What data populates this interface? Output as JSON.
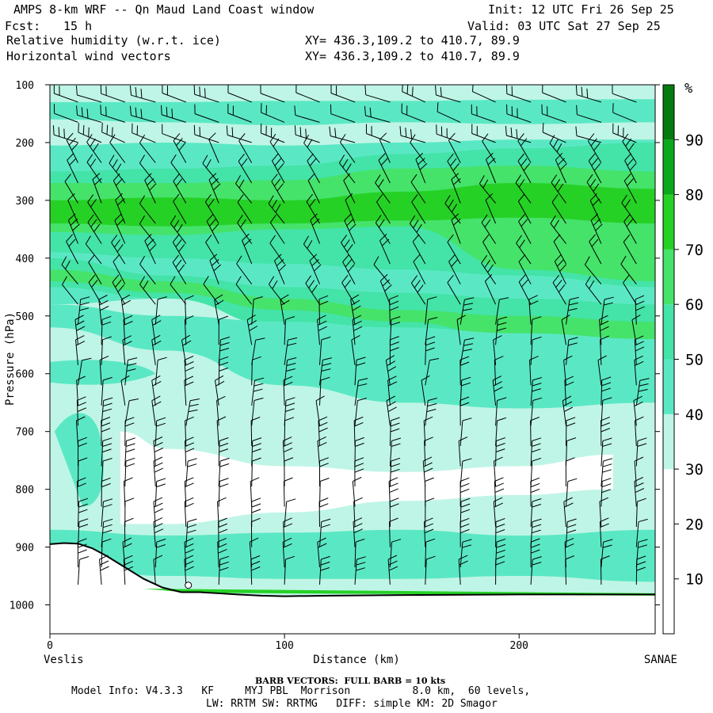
{
  "header": {
    "title": "AMPS 8-km WRF -- Qn Maud Land Coast window",
    "fcst_label": "Fcst:",
    "fcst_value": "15 h",
    "init": "Init: 12 UTC Fri 26 Sep 25",
    "valid": "Valid: 03 UTC Sat 27 Sep 25",
    "field1": "Relative humidity (w.r.t. ice)",
    "field2": "Horizontal wind vectors",
    "xy1": "XY= 436.3,109.2 to 410.7, 89.9",
    "xy2": "XY= 436.3,109.2 to 410.7, 89.9"
  },
  "footer": {
    "barb_note": "BARB VECTORS:  FULL BARB = 10 kts",
    "model_info": "Model Info: V4.3.3   KF     MYJ PBL  Morrison          8.0 km,  60 levels,",
    "physics": "LW: RRTM SW: RRTMG   DIFF: simple KM: 2D Smagor"
  },
  "colors": {
    "rh_30_40": "#bff5e6",
    "rh_40_50": "#5ae8c4",
    "rh_50_60": "#44e3a8",
    "rh_60_70": "#45e36a",
    "rh_70_80": "#26d126",
    "rh_80_90": "#0aa81a",
    "rh_90_100": "#047a10"
  },
  "chart_data": {
    "type": "heatmap",
    "title": "Relative humidity (w.r.t. ice)",
    "xlabel": "Distance (km)",
    "ylabel": "Pressure (hPa)",
    "xlim": [
      0,
      258
    ],
    "ylim": [
      1050,
      100
    ],
    "x_ticks": [
      0,
      100,
      200
    ],
    "y_ticks": [
      100,
      200,
      300,
      400,
      500,
      600,
      700,
      800,
      900,
      1000
    ],
    "x_start_label": "Veslis",
    "x_end_label": "SANAE",
    "colorbar": {
      "unit": "%",
      "levels": [
        10,
        20,
        30,
        40,
        50,
        60,
        70,
        80,
        90
      ],
      "bins": [
        {
          "min": 0,
          "max": 30,
          "color": "#ffffff"
        },
        {
          "min": 30,
          "max": 40,
          "color": "#bff5e6"
        },
        {
          "min": 40,
          "max": 50,
          "color": "#5ae8c4"
        },
        {
          "min": 50,
          "max": 60,
          "color": "#44e3a8"
        },
        {
          "min": 60,
          "max": 70,
          "color": "#45e36a"
        },
        {
          "min": 70,
          "max": 80,
          "color": "#26d126"
        },
        {
          "min": 80,
          "max": 90,
          "color": "#0aa81a"
        },
        {
          "min": 90,
          "max": 100,
          "color": "#047a10"
        }
      ]
    },
    "bands": [
      {
        "color": "#bff5e6",
        "top": [
          100,
          100,
          100,
          100,
          100,
          100
        ],
        "bottom": [
          1050,
          1050,
          1050,
          1050,
          1050,
          1050
        ]
      },
      {
        "color": "#5ae8c4",
        "top": [
          130,
          130,
          128,
          128,
          126,
          125
        ],
        "bottom": [
          160,
          165,
          170,
          165,
          168,
          165
        ]
      },
      {
        "color": "#5ae8c4",
        "top": [
          205,
          200,
          205,
          200,
          195,
          195
        ],
        "bottom": [
          480,
          470,
          470,
          480,
          500,
          510
        ]
      },
      {
        "color": "#44e3a8",
        "top": [
          250,
          245,
          240,
          220,
          210,
          200
        ],
        "bottom": [
          390,
          400,
          410,
          420,
          430,
          450
        ]
      },
      {
        "color": "#45e36a",
        "top": [
          270,
          270,
          265,
          245,
          240,
          250
        ],
        "bottom": [
          355,
          360,
          350,
          345,
          420,
          440
        ]
      },
      {
        "color": "#26d126",
        "top": [
          300,
          295,
          300,
          285,
          270,
          280
        ],
        "bottom": [
          340,
          345,
          340,
          335,
          330,
          340
        ]
      },
      {
        "color": "#44e3a8",
        "top": [
          400,
          430,
          450,
          460,
          470,
          480
        ],
        "bottom": [
          450,
          470,
          520,
          530,
          540,
          560
        ]
      },
      {
        "color": "#45e36a",
        "top": [
          420,
          440,
          470,
          490,
          500,
          510
        ],
        "bottom": [
          440,
          460,
          490,
          510,
          540,
          550
        ]
      },
      {
        "color": "#5ae8c4",
        "top": [
          480,
          500,
          510,
          520,
          530,
          540
        ],
        "bottom": [
          520,
          560,
          620,
          650,
          660,
          650
        ]
      },
      {
        "color": "#5ae8c4",
        "top": [
          870,
          880,
          875,
          870,
          880,
          870
        ],
        "bottom": [
          930,
          950,
          955,
          955,
          950,
          960
        ]
      }
    ],
    "clear_zone": {
      "top": [
        700,
        730,
        760,
        770,
        760,
        740
      ],
      "bottom": [
        860,
        860,
        840,
        820,
        810,
        800
      ],
      "x": [
        30,
        50,
        100,
        150,
        200,
        240
      ]
    },
    "terrain": {
      "x": [
        0,
        6,
        12,
        18,
        24,
        32,
        40,
        48,
        56,
        64,
        72,
        80,
        90,
        100,
        120,
        150,
        200,
        258
      ],
      "p": [
        895,
        893,
        894,
        902,
        915,
        935,
        955,
        970,
        978,
        978,
        980,
        982,
        984,
        985,
        984,
        983,
        982,
        982
      ]
    },
    "station_marker": {
      "x": 59,
      "p": 966
    },
    "wind_rows_hPa": [
      130,
      165,
      200,
      235,
      270,
      305,
      340,
      375,
      410,
      445,
      480,
      515,
      550,
      585,
      620,
      655,
      690,
      725,
      760,
      795,
      830,
      865,
      900,
      935,
      965
    ],
    "wind_cols_km": [
      12,
      22,
      32,
      45,
      58,
      72,
      86,
      100,
      115,
      130,
      145,
      160,
      175,
      190,
      205,
      220,
      235,
      250
    ],
    "wind_direction": "varying; full barb = 10 kts"
  }
}
